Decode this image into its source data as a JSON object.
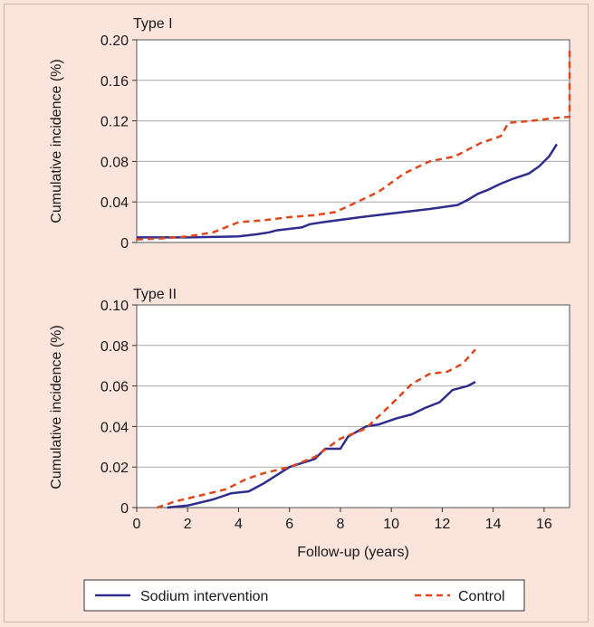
{
  "colors": {
    "background": "#fbe4dc",
    "plot_background": "#ffffff",
    "grid": "#a9a9a9",
    "sodium_intervention": "#2e2d8c",
    "control": "#e0461c"
  },
  "legend": {
    "sodium_label": "Sodium intervention",
    "control_label": "Control"
  },
  "chart_data": [
    {
      "type": "line",
      "title": "Type I",
      "xlabel": "",
      "ylabel": "Cumulative incidence (%)",
      "xlim": [
        0,
        17
      ],
      "ylim": [
        0,
        0.2
      ],
      "yticks": [
        0,
        0.04,
        0.08,
        0.12,
        0.16,
        0.2
      ],
      "ytick_labels": [
        "0",
        "0.04",
        "0.08",
        "0.12",
        "0.16",
        "0.20"
      ],
      "grid": true,
      "series": [
        {
          "name": "Sodium intervention",
          "x": [
            0,
            2,
            4,
            4.7,
            5.2,
            5.5,
            6.5,
            6.8,
            7.3,
            8.8,
            9.8,
            11.5,
            12.6,
            13.0,
            13.4,
            13.8,
            14.3,
            14.8,
            15.4,
            15.8,
            16.2,
            16.5
          ],
          "y": [
            0.005,
            0.005,
            0.006,
            0.008,
            0.01,
            0.012,
            0.015,
            0.018,
            0.02,
            0.025,
            0.028,
            0.033,
            0.037,
            0.042,
            0.048,
            0.052,
            0.058,
            0.063,
            0.068,
            0.075,
            0.085,
            0.097
          ]
        },
        {
          "name": "Control",
          "x": [
            0,
            1,
            2,
            3,
            4,
            5,
            6,
            7,
            7.8,
            8.5,
            9.5,
            10.5,
            11.5,
            12.5,
            13.5,
            14.3,
            14.6,
            15.5,
            16.5,
            17.0,
            17.0
          ],
          "y": [
            0.003,
            0.004,
            0.006,
            0.01,
            0.02,
            0.022,
            0.025,
            0.027,
            0.03,
            0.038,
            0.05,
            0.068,
            0.08,
            0.085,
            0.098,
            0.105,
            0.118,
            0.12,
            0.123,
            0.124,
            0.19
          ]
        }
      ]
    },
    {
      "type": "line",
      "title": "Type II",
      "xlabel": "Follow-up (years)",
      "ylabel": "Cumulative incidence (%)",
      "xlim": [
        0,
        17
      ],
      "ylim": [
        0,
        0.1
      ],
      "xticks": [
        0,
        2,
        4,
        6,
        8,
        10,
        12,
        14,
        16
      ],
      "xtick_labels": [
        "0",
        "2",
        "4",
        "6",
        "8",
        "10",
        "12",
        "14",
        "16"
      ],
      "yticks": [
        0,
        0.02,
        0.04,
        0.06,
        0.08,
        0.1
      ],
      "ytick_labels": [
        "0",
        "0.02",
        "0.04",
        "0.06",
        "0.08",
        "0.10"
      ],
      "grid": true,
      "series": [
        {
          "name": "Sodium intervention",
          "x": [
            1.2,
            2.0,
            3.0,
            3.7,
            4.4,
            5.0,
            6.0,
            7.0,
            7.4,
            8.0,
            8.3,
            9.0,
            9.5,
            10.2,
            10.8,
            11.3,
            11.9,
            12.4,
            13.0,
            13.3
          ],
          "y": [
            0,
            0.001,
            0.004,
            0.007,
            0.008,
            0.012,
            0.02,
            0.024,
            0.029,
            0.029,
            0.035,
            0.04,
            0.041,
            0.044,
            0.046,
            0.049,
            0.052,
            0.058,
            0.06,
            0.062
          ]
        },
        {
          "name": "Control",
          "x": [
            0.8,
            1.5,
            2.5,
            3.5,
            4.3,
            5.0,
            6.0,
            7.0,
            8.0,
            9.0,
            10.0,
            10.8,
            11.5,
            12.2,
            12.8,
            13.3
          ],
          "y": [
            0,
            0.003,
            0.006,
            0.009,
            0.014,
            0.017,
            0.02,
            0.025,
            0.034,
            0.039,
            0.051,
            0.061,
            0.066,
            0.067,
            0.071,
            0.078
          ]
        }
      ]
    }
  ]
}
